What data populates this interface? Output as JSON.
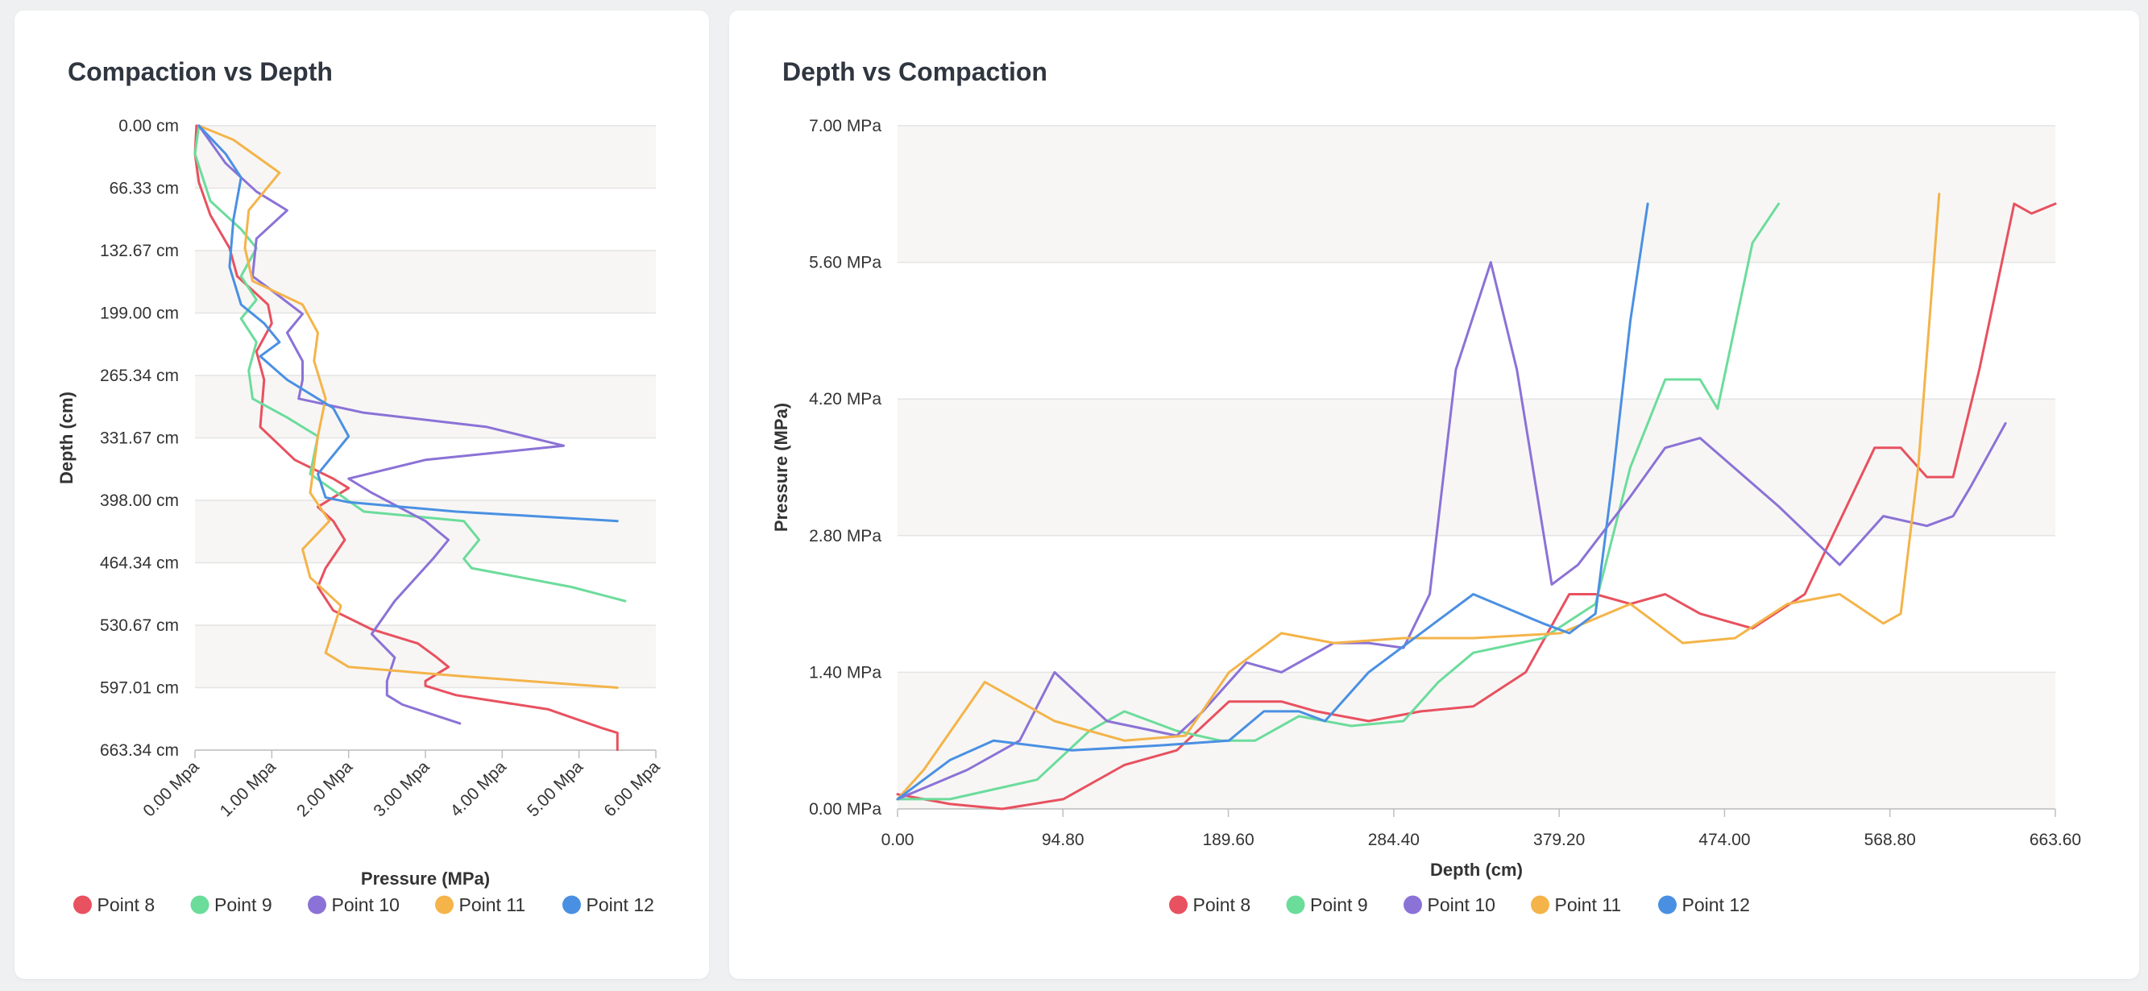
{
  "chart_data": [
    {
      "type": "line",
      "title": "Compaction vs Depth",
      "xlabel": "Pressure (MPa)",
      "ylabel": "Depth (cm)",
      "xlim": [
        0,
        6
      ],
      "ylim": [
        0,
        663.34
      ],
      "y_inverted": true,
      "x_ticks": [
        "0.00 Mpa",
        "1.00 Mpa",
        "2.00 Mpa",
        "3.00 Mpa",
        "4.00 Mpa",
        "5.00 Mpa",
        "6.00 Mpa"
      ],
      "y_ticks": [
        "0.00 cm",
        "66.33 cm",
        "132.67 cm",
        "199.00 cm",
        "265.34 cm",
        "331.67 cm",
        "398.00 cm",
        "464.34 cm",
        "530.67 cm",
        "597.01 cm",
        "663.34 cm"
      ],
      "grid": "horizontal-bands",
      "legend": "bottom",
      "series": [
        {
          "name": "Point 8",
          "color": "#e8515f",
          "points": [
            [
              0.02,
              0
            ],
            [
              0,
              30
            ],
            [
              0.05,
              60
            ],
            [
              0.2,
              95
            ],
            [
              0.45,
              130
            ],
            [
              0.55,
              160
            ],
            [
              0.95,
              190
            ],
            [
              1.0,
              210
            ],
            [
              0.8,
              240
            ],
            [
              0.9,
              270
            ],
            [
              0.85,
              320
            ],
            [
              1.3,
              355
            ],
            [
              1.8,
              375
            ],
            [
              2.0,
              385
            ],
            [
              1.6,
              405
            ],
            [
              1.8,
              420
            ],
            [
              1.95,
              440
            ],
            [
              1.7,
              470
            ],
            [
              1.6,
              490
            ],
            [
              1.8,
              515
            ],
            [
              2.3,
              535
            ],
            [
              2.9,
              550
            ],
            [
              3.15,
              565
            ],
            [
              3.3,
              575
            ],
            [
              3.0,
              590
            ],
            [
              3.0,
              595
            ],
            [
              3.4,
              605
            ],
            [
              4.6,
              620
            ],
            [
              5.3,
              640
            ],
            [
              5.5,
              645
            ],
            [
              5.5,
              663
            ]
          ]
        },
        {
          "name": "Point 9",
          "color": "#6cdc9b",
          "points": [
            [
              0.05,
              0
            ],
            [
              0.0,
              30
            ],
            [
              0.2,
              80
            ],
            [
              0.6,
              110
            ],
            [
              0.8,
              130
            ],
            [
              0.6,
              160
            ],
            [
              0.8,
              185
            ],
            [
              0.6,
              205
            ],
            [
              0.8,
              230
            ],
            [
              0.7,
              260
            ],
            [
              0.75,
              290
            ],
            [
              1.2,
              310
            ],
            [
              1.6,
              330
            ],
            [
              1.5,
              370
            ],
            [
              2.2,
              410
            ],
            [
              3.5,
              420
            ],
            [
              3.7,
              440
            ],
            [
              3.5,
              460
            ],
            [
              3.6,
              470
            ],
            [
              4.9,
              490
            ],
            [
              5.6,
              505
            ]
          ]
        },
        {
          "name": "Point 10",
          "color": "#8b72d6",
          "points": [
            [
              0.05,
              0
            ],
            [
              0.4,
              40
            ],
            [
              0.8,
              70
            ],
            [
              1.2,
              90
            ],
            [
              0.8,
              120
            ],
            [
              0.75,
              160
            ],
            [
              1.0,
              175
            ],
            [
              1.4,
              200
            ],
            [
              1.2,
              220
            ],
            [
              1.4,
              250
            ],
            [
              1.4,
              270
            ],
            [
              1.35,
              290
            ],
            [
              2.2,
              305
            ],
            [
              3.8,
              320
            ],
            [
              4.8,
              340
            ],
            [
              3.0,
              355
            ],
            [
              2.0,
              375
            ],
            [
              2.3,
              390
            ],
            [
              3.0,
              420
            ],
            [
              3.3,
              440
            ],
            [
              3.1,
              460
            ],
            [
              2.6,
              505
            ],
            [
              2.3,
              540
            ],
            [
              2.6,
              565
            ],
            [
              2.5,
              590
            ],
            [
              2.5,
              605
            ],
            [
              2.7,
              615
            ],
            [
              3.45,
              635
            ]
          ]
        },
        {
          "name": "Point 11",
          "color": "#f4b44a",
          "points": [
            [
              0.05,
              0
            ],
            [
              0.5,
              15
            ],
            [
              1.1,
              50
            ],
            [
              0.7,
              90
            ],
            [
              0.65,
              130
            ],
            [
              0.75,
              165
            ],
            [
              1.4,
              190
            ],
            [
              1.6,
              220
            ],
            [
              1.55,
              250
            ],
            [
              1.7,
              290
            ],
            [
              1.6,
              330
            ],
            [
              1.5,
              390
            ],
            [
              1.75,
              420
            ],
            [
              1.4,
              450
            ],
            [
              1.5,
              480
            ],
            [
              1.9,
              510
            ],
            [
              1.7,
              560
            ],
            [
              2.0,
              575
            ],
            [
              3.5,
              585
            ],
            [
              5.5,
              597
            ]
          ]
        },
        {
          "name": "Point 12",
          "color": "#4a90e2",
          "points": [
            [
              0.05,
              0
            ],
            [
              0.4,
              30
            ],
            [
              0.6,
              55
            ],
            [
              0.5,
              100
            ],
            [
              0.45,
              150
            ],
            [
              0.6,
              190
            ],
            [
              0.9,
              210
            ],
            [
              1.1,
              230
            ],
            [
              0.85,
              245
            ],
            [
              1.2,
              270
            ],
            [
              1.8,
              300
            ],
            [
              2.0,
              330
            ],
            [
              1.6,
              370
            ],
            [
              1.7,
              395
            ],
            [
              2.0,
              400
            ],
            [
              3.4,
              410
            ],
            [
              5.5,
              420
            ]
          ]
        }
      ]
    },
    {
      "type": "line",
      "title": "Depth vs Compaction",
      "xlabel": "Depth (cm)",
      "ylabel": "Pressure (MPa)",
      "xlim": [
        0,
        663.6
      ],
      "ylim": [
        0,
        7
      ],
      "x_ticks": [
        "0.00",
        "94.80",
        "189.60",
        "284.40",
        "379.20",
        "474.00",
        "568.80",
        "663.60"
      ],
      "y_ticks": [
        "0.00 MPa",
        "1.40 MPa",
        "2.80 MPa",
        "4.20 MPa",
        "5.60 MPa",
        "7.00 MPa"
      ],
      "grid": "horizontal-bands",
      "legend": "bottom",
      "series": [
        {
          "name": "Point 8",
          "color": "#e8515f",
          "points": [
            [
              0,
              0.15
            ],
            [
              30,
              0.05
            ],
            [
              60,
              0
            ],
            [
              95,
              0.1
            ],
            [
              130,
              0.45
            ],
            [
              160,
              0.6
            ],
            [
              190,
              1.1
            ],
            [
              220,
              1.1
            ],
            [
              240,
              1.0
            ],
            [
              270,
              0.9
            ],
            [
              300,
              1.0
            ],
            [
              330,
              1.05
            ],
            [
              360,
              1.4
            ],
            [
              385,
              2.2
            ],
            [
              400,
              2.2
            ],
            [
              420,
              2.1
            ],
            [
              440,
              2.2
            ],
            [
              460,
              2.0
            ],
            [
              490,
              1.85
            ],
            [
              520,
              2.2
            ],
            [
              560,
              3.7
            ],
            [
              575,
              3.7
            ],
            [
              590,
              3.4
            ],
            [
              605,
              3.4
            ],
            [
              620,
              4.5
            ],
            [
              640,
              6.2
            ],
            [
              650,
              6.1
            ],
            [
              663.6,
              6.2
            ]
          ]
        },
        {
          "name": "Point 9",
          "color": "#6cdc9b",
          "points": [
            [
              0,
              0.1
            ],
            [
              30,
              0.1
            ],
            [
              80,
              0.3
            ],
            [
              110,
              0.8
            ],
            [
              130,
              1.0
            ],
            [
              160,
              0.8
            ],
            [
              185,
              0.7
            ],
            [
              205,
              0.7
            ],
            [
              230,
              0.95
            ],
            [
              260,
              0.85
            ],
            [
              290,
              0.9
            ],
            [
              310,
              1.3
            ],
            [
              330,
              1.6
            ],
            [
              370,
              1.75
            ],
            [
              400,
              2.1
            ],
            [
              420,
              3.5
            ],
            [
              440,
              4.4
            ],
            [
              460,
              4.4
            ],
            [
              470,
              4.1
            ],
            [
              490,
              5.8
            ],
            [
              505,
              6.2
            ]
          ]
        },
        {
          "name": "Point 10",
          "color": "#8b72d6",
          "points": [
            [
              0,
              0.1
            ],
            [
              40,
              0.4
            ],
            [
              70,
              0.7
            ],
            [
              90,
              1.4
            ],
            [
              120,
              0.9
            ],
            [
              160,
              0.75
            ],
            [
              175,
              1.0
            ],
            [
              200,
              1.5
            ],
            [
              220,
              1.4
            ],
            [
              250,
              1.7
            ],
            [
              270,
              1.7
            ],
            [
              290,
              1.65
            ],
            [
              305,
              2.2
            ],
            [
              320,
              4.5
            ],
            [
              340,
              5.6
            ],
            [
              355,
              4.5
            ],
            [
              375,
              2.3
            ],
            [
              390,
              2.5
            ],
            [
              420,
              3.2
            ],
            [
              440,
              3.7
            ],
            [
              460,
              3.8
            ],
            [
              505,
              3.1
            ],
            [
              540,
              2.5
            ],
            [
              565,
              3.0
            ],
            [
              590,
              2.9
            ],
            [
              605,
              3.0
            ],
            [
              615,
              3.3
            ],
            [
              635,
              3.95
            ]
          ]
        },
        {
          "name": "Point 11",
          "color": "#f4b44a",
          "points": [
            [
              0,
              0.1
            ],
            [
              15,
              0.4
            ],
            [
              50,
              1.3
            ],
            [
              90,
              0.9
            ],
            [
              130,
              0.7
            ],
            [
              165,
              0.75
            ],
            [
              190,
              1.4
            ],
            [
              220,
              1.8
            ],
            [
              250,
              1.7
            ],
            [
              290,
              1.75
            ],
            [
              330,
              1.75
            ],
            [
              380,
              1.8
            ],
            [
              420,
              2.1
            ],
            [
              450,
              1.7
            ],
            [
              480,
              1.75
            ],
            [
              510,
              2.1
            ],
            [
              540,
              2.2
            ],
            [
              565,
              1.9
            ],
            [
              575,
              2.0
            ],
            [
              585,
              3.5
            ],
            [
              597,
              6.3
            ]
          ]
        },
        {
          "name": "Point 12",
          "color": "#4a90e2",
          "points": [
            [
              0,
              0.1
            ],
            [
              30,
              0.5
            ],
            [
              55,
              0.7
            ],
            [
              100,
              0.6
            ],
            [
              150,
              0.65
            ],
            [
              190,
              0.7
            ],
            [
              210,
              1.0
            ],
            [
              230,
              1.0
            ],
            [
              245,
              0.9
            ],
            [
              270,
              1.4
            ],
            [
              300,
              1.8
            ],
            [
              330,
              2.2
            ],
            [
              370,
              1.9
            ],
            [
              385,
              1.8
            ],
            [
              400,
              2.0
            ],
            [
              410,
              3.4
            ],
            [
              420,
              5.0
            ],
            [
              430,
              6.2
            ]
          ]
        }
      ]
    }
  ]
}
